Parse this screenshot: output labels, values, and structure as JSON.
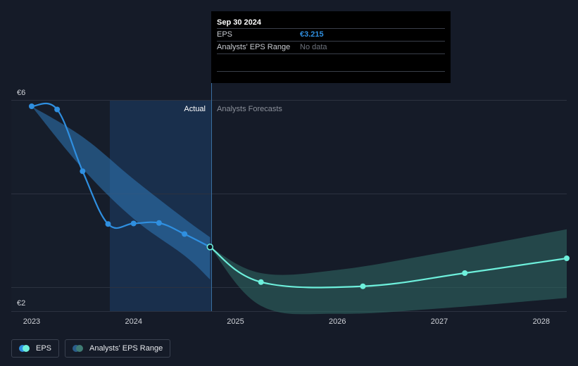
{
  "tooltip": {
    "date": "Sep 30 2024",
    "rows": [
      {
        "label": "EPS",
        "value": "€3.215"
      },
      {
        "label": "Analysts' EPS Range",
        "value": "No data"
      }
    ]
  },
  "section_labels": {
    "actual": "Actual",
    "forecast": "Analysts Forecasts"
  },
  "legend": [
    {
      "label": "EPS",
      "colors": [
        "#2f8fe0",
        "#6ef0dc"
      ]
    },
    {
      "label": "Analysts' EPS Range",
      "colors": [
        "#2a5d8a",
        "#3f7b74"
      ]
    }
  ],
  "colors": {
    "eps_actual": "#2f8fe0",
    "eps_forecast": "#6ef0dc",
    "range_past": "#2f78b8",
    "range_forecast": "#2f6660",
    "background": "#151b28",
    "actual_panel": "#1a3352"
  },
  "chart_data": {
    "type": "line",
    "ylim": [
      2,
      6
    ],
    "y_tick_labels": [
      "€6",
      "€2"
    ],
    "x_tick_labels": [
      "2023",
      "2024",
      "2025",
      "2026",
      "2027",
      "2028"
    ],
    "x_ticks": [
      2023,
      2024,
      2025,
      2026,
      2027,
      2028
    ],
    "xlim": [
      2022.8,
      2028.25
    ],
    "divider_x": 2024.75,
    "shaded_from_x": 2023.75,
    "series": [
      {
        "name": "EPS",
        "segment": "actual",
        "points": [
          [
            2023.0,
            5.88
          ],
          [
            2023.25,
            5.82
          ],
          [
            2023.5,
            4.65
          ],
          [
            2023.75,
            3.65
          ],
          [
            2024.0,
            3.66
          ],
          [
            2024.25,
            3.67
          ],
          [
            2024.5,
            3.46
          ],
          [
            2024.75,
            3.215
          ]
        ]
      },
      {
        "name": "EPS",
        "segment": "forecast",
        "points": [
          [
            2024.75,
            3.215
          ],
          [
            2025.25,
            2.55
          ],
          [
            2026.25,
            2.47
          ],
          [
            2027.25,
            2.72
          ],
          [
            2028.25,
            3.0
          ]
        ]
      }
    ],
    "range_past": {
      "upper": [
        [
          2023.0,
          5.88
        ],
        [
          2023.5,
          5.3
        ],
        [
          2024.0,
          4.5
        ],
        [
          2024.5,
          3.75
        ],
        [
          2024.75,
          3.4
        ]
      ],
      "lower": [
        [
          2023.0,
          5.88
        ],
        [
          2023.5,
          4.7
        ],
        [
          2024.0,
          3.75
        ],
        [
          2024.5,
          3.05
        ],
        [
          2024.75,
          2.6
        ]
      ]
    },
    "range_forecast": {
      "upper": [
        [
          2024.75,
          3.215
        ],
        [
          2025.25,
          2.72
        ],
        [
          2026.0,
          2.78
        ],
        [
          2027.0,
          3.1
        ],
        [
          2028.25,
          3.55
        ]
      ],
      "lower": [
        [
          2024.75,
          3.215
        ],
        [
          2025.25,
          2.1
        ],
        [
          2026.0,
          1.95
        ],
        [
          2027.0,
          2.05
        ],
        [
          2028.25,
          2.25
        ]
      ]
    }
  }
}
